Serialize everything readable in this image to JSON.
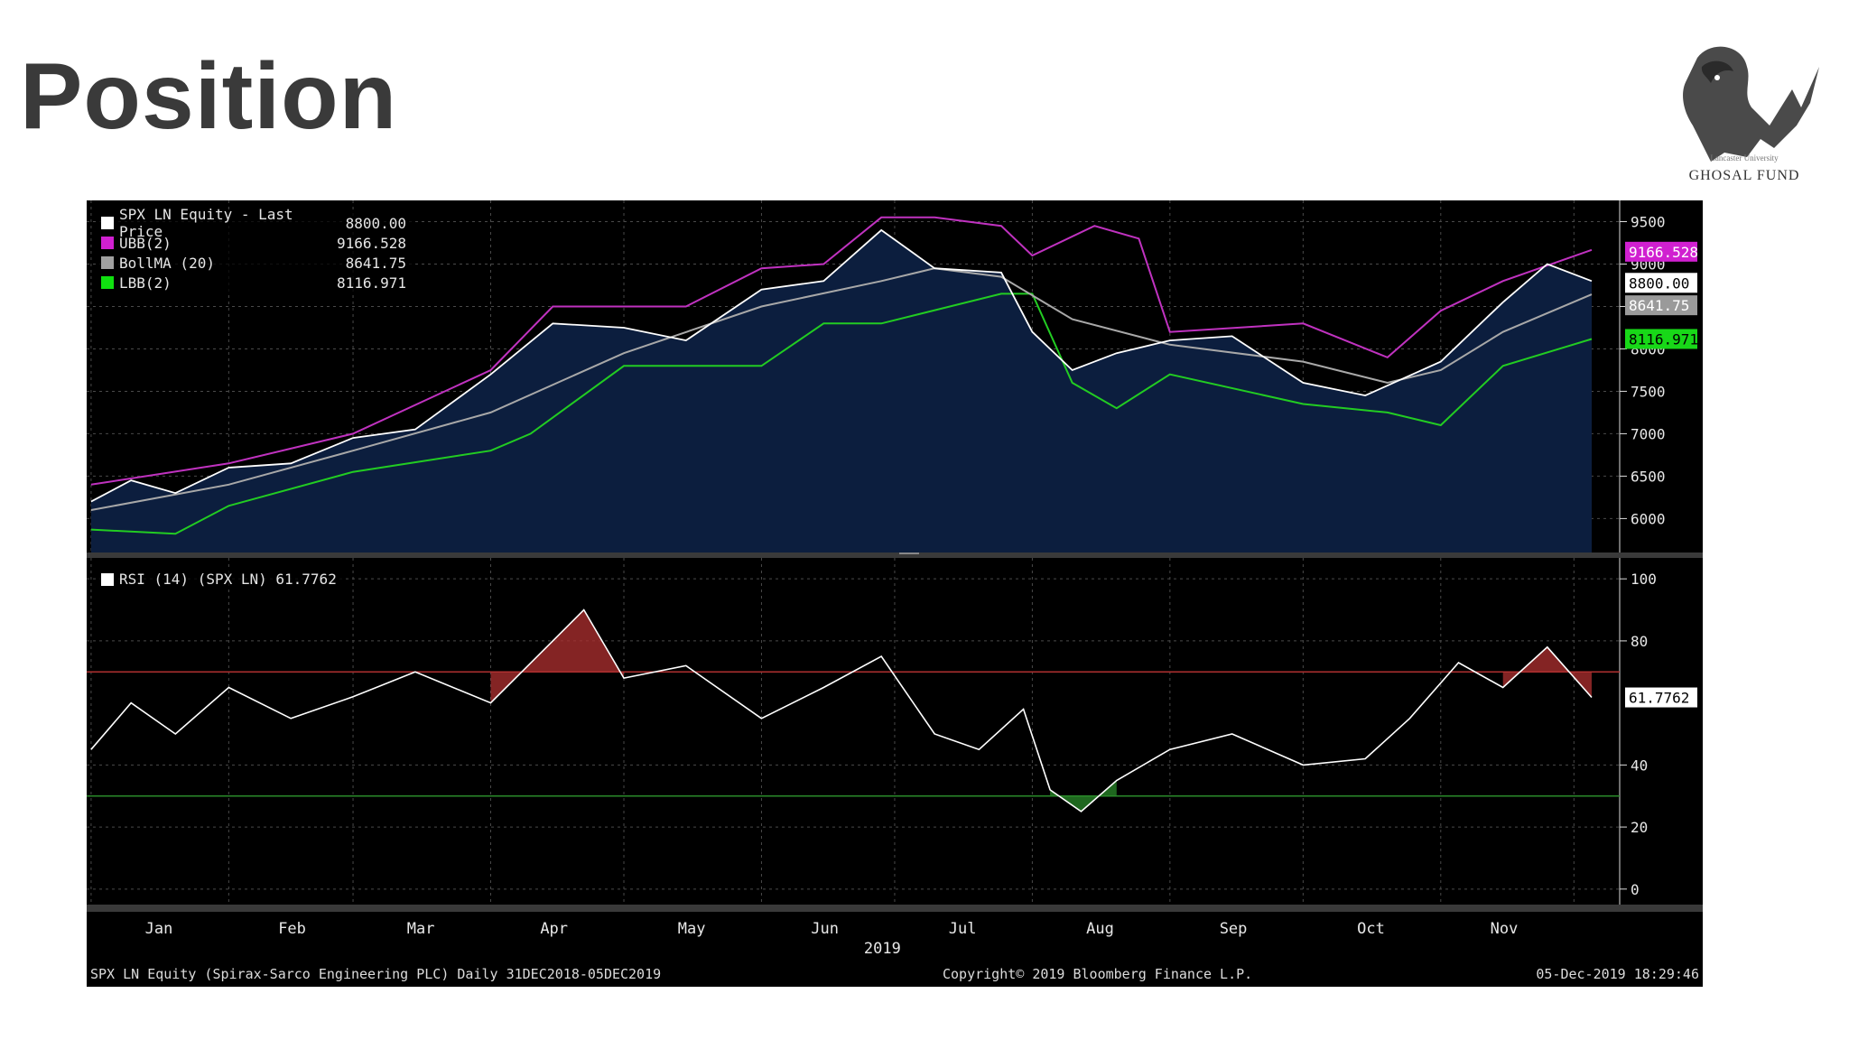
{
  "slide": {
    "title": "Position"
  },
  "logo": {
    "name": "GHOSAL FUND",
    "subtitle": "Lancaster University"
  },
  "colors": {
    "ubb": "#c032c0",
    "bollma": "#a8a8a8",
    "lbb": "#22cc22",
    "price": "#ffffff",
    "area": "#0c1e3e",
    "overbought": "#b03030",
    "oversold": "#2a8a2a"
  },
  "price_legend": [
    {
      "label": "SPX LN Equity - Last Price",
      "value": "8800.00",
      "color": "#ffffff"
    },
    {
      "label": "UBB(2)",
      "value": "9166.528",
      "color": "#d020d0"
    },
    {
      "label": "BollMA (20)",
      "value": "8641.75",
      "color": "#a0a0a0"
    },
    {
      "label": "LBB(2)",
      "value": "8116.971",
      "color": "#10e010"
    }
  ],
  "rsi_legend": {
    "label": "RSI (14) (SPX LN) 61.7762"
  },
  "price_axis_ticks": [
    "9500",
    "9000",
    "8500",
    "8000",
    "7500",
    "7000",
    "6500",
    "6000"
  ],
  "rsi_axis_ticks": [
    "100",
    "80",
    "40",
    "20",
    "0"
  ],
  "value_tags": {
    "ubb": "9166.528",
    "price": "8800.00",
    "bollma": "8641.75",
    "lbb": "8116.971",
    "rsi": "61.7762"
  },
  "months": [
    "Jan",
    "Feb",
    "Mar",
    "Apr",
    "May",
    "Jun",
    "Jul",
    "Aug",
    "Sep",
    "Oct",
    "Nov"
  ],
  "year_label": "2019",
  "footer": {
    "left": "SPX LN Equity (Spirax-Sarco Engineering PLC)  Daily 31DEC2018-05DEC2019",
    "center": "Copyright© 2019 Bloomberg Finance L.P.",
    "right": "05-Dec-2019 18:29:46"
  },
  "chart_data": [
    {
      "type": "line",
      "title": "SPX LN Equity - Last Price",
      "x_range": [
        "2018-12-31",
        "2019-12-05"
      ],
      "ylim": [
        5600,
        9750
      ],
      "grid": true,
      "legend_position": "top-left",
      "series": [
        {
          "name": "SPX LN Equity - Last Price",
          "x": [
            "2019-01-01",
            "2019-01-10",
            "2019-01-20",
            "2019-02-01",
            "2019-02-15",
            "2019-03-01",
            "2019-03-15",
            "2019-04-01",
            "2019-04-15",
            "2019-05-01",
            "2019-05-15",
            "2019-06-01",
            "2019-06-15",
            "2019-06-28",
            "2019-07-10",
            "2019-07-25",
            "2019-08-01",
            "2019-08-10",
            "2019-08-20",
            "2019-09-01",
            "2019-09-15",
            "2019-10-01",
            "2019-10-15",
            "2019-11-01",
            "2019-11-15",
            "2019-11-25",
            "2019-12-05"
          ],
          "values": [
            6200,
            6450,
            6300,
            6600,
            6650,
            6950,
            7050,
            7700,
            8300,
            8250,
            8100,
            8700,
            8800,
            9400,
            8950,
            8900,
            8200,
            7750,
            7950,
            8100,
            8150,
            7600,
            7450,
            7850,
            8550,
            9000,
            8800
          ]
        },
        {
          "name": "UBB(2)",
          "x": [
            "2019-01-01",
            "2019-02-01",
            "2019-03-01",
            "2019-04-01",
            "2019-04-15",
            "2019-05-01",
            "2019-05-15",
            "2019-06-01",
            "2019-06-15",
            "2019-06-28",
            "2019-07-10",
            "2019-07-25",
            "2019-08-01",
            "2019-08-15",
            "2019-08-25",
            "2019-09-01",
            "2019-10-01",
            "2019-10-20",
            "2019-11-01",
            "2019-11-15",
            "2019-12-05"
          ],
          "values": [
            6400,
            6650,
            7000,
            7750,
            8500,
            8500,
            8500,
            8950,
            9000,
            9550,
            9550,
            9450,
            9100,
            9450,
            9300,
            8200,
            8300,
            7900,
            8450,
            8800,
            9166.528
          ]
        },
        {
          "name": "BollMA (20)",
          "x": [
            "2019-01-01",
            "2019-02-01",
            "2019-03-01",
            "2019-04-01",
            "2019-05-01",
            "2019-06-01",
            "2019-06-28",
            "2019-07-10",
            "2019-07-25",
            "2019-08-10",
            "2019-09-01",
            "2019-10-01",
            "2019-10-20",
            "2019-11-01",
            "2019-11-15",
            "2019-12-05"
          ],
          "values": [
            6100,
            6400,
            6800,
            7250,
            7950,
            8500,
            8800,
            8950,
            8850,
            8350,
            8050,
            7850,
            7600,
            7750,
            8200,
            8641.75
          ]
        },
        {
          "name": "LBB(2)",
          "x": [
            "2019-01-01",
            "2019-01-20",
            "2019-02-01",
            "2019-03-01",
            "2019-04-01",
            "2019-04-10",
            "2019-05-01",
            "2019-06-01",
            "2019-06-15",
            "2019-06-28",
            "2019-07-25",
            "2019-08-01",
            "2019-08-10",
            "2019-08-20",
            "2019-09-01",
            "2019-10-01",
            "2019-10-20",
            "2019-11-01",
            "2019-11-15",
            "2019-12-05"
          ],
          "values": [
            5870,
            5820,
            6150,
            6550,
            6800,
            7000,
            7800,
            7800,
            8300,
            8300,
            8650,
            8650,
            7600,
            7300,
            7700,
            7350,
            7250,
            7100,
            7800,
            8116.971
          ]
        }
      ]
    },
    {
      "type": "line",
      "title": "RSI (14) (SPX LN) 61.7762",
      "x_range": [
        "2018-12-31",
        "2019-12-05"
      ],
      "ylim": [
        -5,
        105
      ],
      "grid": true,
      "thresholds": [
        70,
        30
      ],
      "series": [
        {
          "name": "RSI (14) (SPX LN)",
          "x": [
            "2019-01-01",
            "2019-01-10",
            "2019-01-20",
            "2019-02-01",
            "2019-02-15",
            "2019-03-01",
            "2019-03-15",
            "2019-04-01",
            "2019-04-15",
            "2019-04-22",
            "2019-05-01",
            "2019-05-15",
            "2019-06-01",
            "2019-06-15",
            "2019-06-28",
            "2019-07-10",
            "2019-07-20",
            "2019-07-30",
            "2019-08-05",
            "2019-08-12",
            "2019-08-20",
            "2019-09-01",
            "2019-09-15",
            "2019-10-01",
            "2019-10-15",
            "2019-10-25",
            "2019-11-05",
            "2019-11-15",
            "2019-11-25",
            "2019-12-05"
          ],
          "values": [
            45,
            60,
            50,
            65,
            55,
            62,
            70,
            60,
            80,
            90,
            68,
            72,
            55,
            65,
            75,
            50,
            45,
            58,
            32,
            25,
            35,
            45,
            50,
            40,
            42,
            55,
            73,
            65,
            78,
            61.7762
          ]
        }
      ]
    }
  ]
}
